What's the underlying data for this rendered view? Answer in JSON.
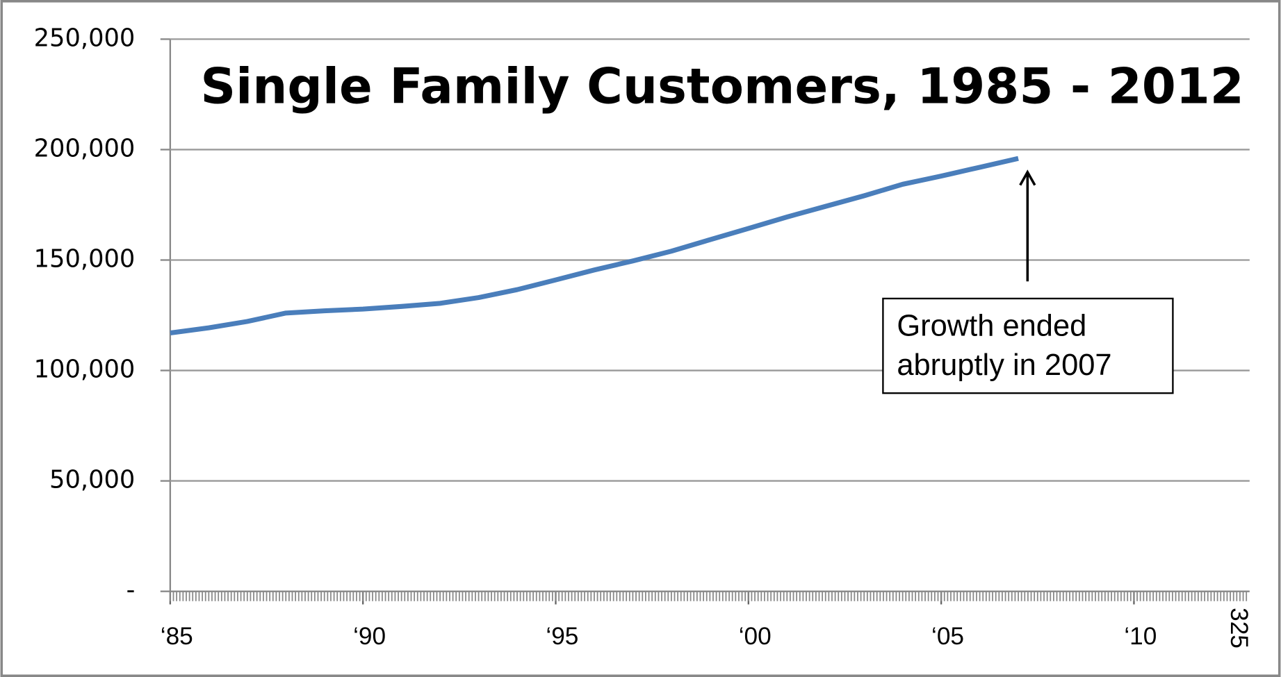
{
  "chart_data": {
    "type": "line",
    "title": "Single Family Customers, 1985 - 2012",
    "x": [
      1985,
      1986,
      1987,
      1988,
      1989,
      1990,
      1991,
      1992,
      1993,
      1994,
      1995,
      1996,
      1997,
      1998,
      1999,
      2000,
      2001,
      2002,
      2003,
      2004,
      2005,
      2006,
      2007
    ],
    "series": [
      {
        "name": "Single Family Customers",
        "color": "#4a7ebb",
        "values": [
          117000,
          119300,
          122200,
          126000,
          127000,
          127800,
          129000,
          130400,
          133000,
          136600,
          141000,
          145500,
          149600,
          154000,
          159200,
          164300,
          169500,
          174300,
          179100,
          184300,
          188000,
          192000,
          196000
        ]
      }
    ],
    "xlim": [
      1985,
      2013
    ],
    "xticks": [
      {
        "value": 1985,
        "label": "‘85"
      },
      {
        "value": 1990,
        "label": "‘90"
      },
      {
        "value": 1995,
        "label": "‘95"
      },
      {
        "value": 2000,
        "label": "‘00"
      },
      {
        "value": 2005,
        "label": "‘05"
      },
      {
        "value": 2010,
        "label": "‘10"
      }
    ],
    "ylim": [
      0,
      250000
    ],
    "yticks": [
      {
        "value": 0,
        "label": "-"
      },
      {
        "value": 50000,
        "label": "50,000"
      },
      {
        "value": 100000,
        "label": "100,000"
      },
      {
        "value": 150000,
        "label": "150,000"
      },
      {
        "value": 200000,
        "label": "200,000"
      },
      {
        "value": 250000,
        "label": "250,000"
      }
    ],
    "grid": true,
    "annotation": {
      "lines": [
        "Growth ended",
        "abruptly in 2007"
      ]
    },
    "stray_label": "325"
  }
}
